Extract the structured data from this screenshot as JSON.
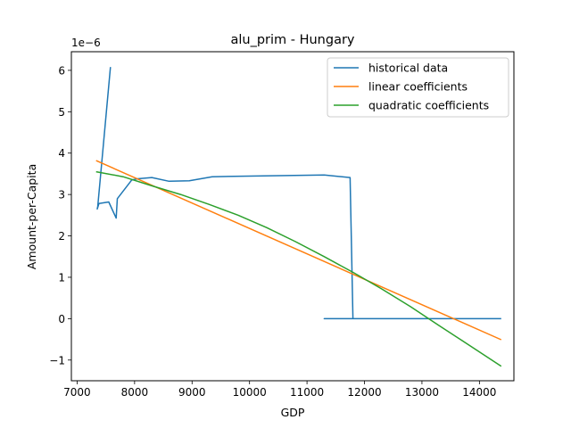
{
  "chart_data": {
    "type": "line",
    "title": "alu_prim - Hungary",
    "xlabel": "GDP",
    "ylabel": "Amount-per-Capita",
    "offset_label": "1e−6",
    "xlim": [
      6900,
      14600
    ],
    "ylim": [
      -1.5,
      6.45
    ],
    "xticks": [
      7000,
      8000,
      9000,
      10000,
      11000,
      12000,
      13000,
      14000
    ],
    "xtick_labels": [
      "7000",
      "8000",
      "9000",
      "10000",
      "11000",
      "12000",
      "13000",
      "14000"
    ],
    "yticks": [
      -1,
      0,
      1,
      2,
      3,
      4,
      5,
      6
    ],
    "ytick_labels": [
      "−1",
      "0",
      "1",
      "2",
      "3",
      "4",
      "5",
      "6"
    ],
    "grid": false,
    "legend_position": "top-right",
    "colors": {
      "historical": "#1f77b4",
      "linear": "#ff7f0e",
      "quadratic": "#2ca02c"
    },
    "series": [
      {
        "name": "historical data",
        "color": "#1f77b4",
        "x": [
          7580,
          7360,
          7350,
          7380,
          7550,
          7680,
          7700,
          7950,
          8050,
          8300,
          8600,
          8950,
          9350,
          10250,
          11300,
          11750,
          11800,
          11820,
          11900,
          12000,
          11300,
          11500,
          12000,
          14380
        ],
        "y": [
          6.08,
          2.72,
          2.65,
          2.78,
          2.82,
          2.43,
          2.9,
          3.35,
          3.38,
          3.41,
          3.32,
          3.33,
          3.43,
          3.45,
          3.47,
          3.41,
          0.0,
          0.0,
          0.0,
          0.0,
          0.0,
          0.0,
          0.0,
          0.0
        ]
      },
      {
        "name": "linear coefficients",
        "color": "#ff7f0e",
        "x": [
          7330,
          14380
        ],
        "y": [
          3.82,
          -0.51
        ]
      },
      {
        "name": "quadratic coefficients",
        "color": "#2ca02c",
        "x": [
          7330,
          7800,
          8300,
          8800,
          9300,
          9800,
          10300,
          10800,
          11300,
          11800,
          12300,
          12800,
          13300,
          13800,
          14380
        ],
        "y": [
          3.55,
          3.43,
          3.21,
          3.0,
          2.76,
          2.5,
          2.2,
          1.86,
          1.5,
          1.12,
          0.72,
          0.29,
          -0.17,
          -0.62,
          -1.15
        ]
      }
    ]
  }
}
